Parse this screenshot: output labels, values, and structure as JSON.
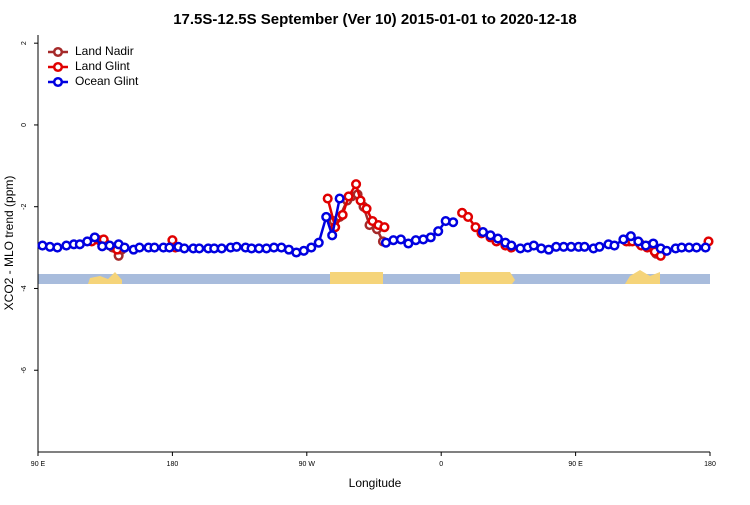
{
  "chart_data": {
    "type": "line",
    "title": "17.5S-12.5S September (Ver 10)   2015-01-01 to 2020-12-18",
    "x_label": "Longitude",
    "y_label": "XCO2 - MLO trend (ppm)",
    "xlim": [
      90,
      540
    ],
    "ylim": [
      -8,
      2.2
    ],
    "xticks": [
      {
        "value": 90,
        "label": "90 E"
      },
      180,
      {
        "value": 270,
        "label": "90 W"
      },
      {
        "value": 360,
        "label": "0"
      },
      {
        "value": 450,
        "label": "90 E"
      },
      {
        "value": 540,
        "label": "180"
      }
    ],
    "yticks": [
      -6,
      -4,
      -2,
      0,
      2
    ],
    "legend": "top-left",
    "series": [
      {
        "name": "Land Nadir",
        "color": "#a52a2a",
        "x": [
          135,
          140,
          144,
          146,
          230,
          288,
          292,
          297,
          300,
          304,
          308,
          312,
          317,
          321,
          400,
          486,
          493,
          500,
          504
        ],
        "values": [
          -2.9,
          -3.0,
          -3.2,
          -3.05,
          null,
          -2.35,
          -2.25,
          -1.85,
          -1.75,
          -1.7,
          -2.0,
          -2.45,
          -2.55,
          -2.85,
          null,
          -2.85,
          -2.9,
          -2.95,
          -3.15
        ]
      },
      {
        "name": "Land Glint",
        "color": "#e00000",
        "x": [
          126,
          131,
          134,
          143,
          160,
          180,
          182,
          230,
          284,
          289,
          294,
          298,
          303,
          306,
          310,
          314,
          318,
          322,
          345,
          374,
          378,
          383,
          387,
          393,
          397,
          403,
          407,
          445,
          484,
          488,
          494,
          498,
          503,
          507,
          525,
          539
        ],
        "values": [
          -2.85,
          -2.82,
          -2.8,
          -3.05,
          null,
          -2.82,
          -3.0,
          null,
          -1.8,
          -2.5,
          -2.2,
          -1.75,
          -1.45,
          -1.85,
          -2.05,
          -2.35,
          -2.45,
          -2.5,
          null,
          -2.15,
          -2.25,
          -2.5,
          -2.65,
          -2.75,
          -2.85,
          -2.95,
          -3.0,
          null,
          -2.85,
          -2.85,
          -2.95,
          -3.0,
          -3.1,
          -3.2,
          null,
          -2.85
        ]
      },
      {
        "name": "Ocean Glint",
        "color": "#0000e0",
        "x": [
          93,
          98,
          103,
          109,
          114,
          118,
          123,
          128,
          133,
          138,
          144,
          148,
          154,
          158,
          164,
          168,
          174,
          178,
          184,
          188,
          194,
          198,
          204,
          208,
          213,
          219,
          223,
          229,
          233,
          238,
          243,
          248,
          253,
          258,
          263,
          268,
          273,
          278,
          283,
          287,
          292,
          307,
          323,
          328,
          333,
          338,
          343,
          348,
          353,
          358,
          363,
          368,
          378,
          388,
          393,
          398,
          403,
          407,
          413,
          418,
          422,
          427,
          432,
          437,
          442,
          447,
          452,
          456,
          462,
          466,
          472,
          476,
          482,
          487,
          492,
          497,
          502,
          507,
          511,
          517,
          521,
          526,
          531,
          537
        ],
        "values": [
          -2.95,
          -2.98,
          -3.0,
          -2.95,
          -2.92,
          -2.92,
          -2.85,
          -2.75,
          -2.97,
          -2.95,
          -2.92,
          -3.0,
          -3.05,
          -3.0,
          -3.0,
          -3.0,
          -3.0,
          -3.0,
          -2.98,
          -3.02,
          -3.02,
          -3.02,
          -3.02,
          -3.02,
          -3.02,
          -3.0,
          -2.98,
          -3.0,
          -3.02,
          -3.02,
          -3.02,
          -3.0,
          -3.0,
          -3.05,
          -3.12,
          -3.08,
          -3.0,
          -2.88,
          -2.25,
          -2.7,
          -1.8,
          null,
          -2.88,
          -2.82,
          -2.8,
          -2.9,
          -2.82,
          -2.8,
          -2.75,
          -2.6,
          -2.35,
          -2.38,
          null,
          -2.62,
          -2.7,
          -2.78,
          -2.88,
          -2.95,
          -3.02,
          -3.0,
          -2.95,
          -3.02,
          -3.05,
          -2.98,
          -2.98,
          -2.98,
          -2.98,
          -2.98,
          -3.02,
          -2.98,
          -2.92,
          -2.95,
          -2.8,
          -2.72,
          -2.85,
          -2.95,
          -2.9,
          -3.02,
          -3.08,
          -3.02,
          -3.0,
          -3.0,
          -3.0,
          -3.0
        ]
      }
    ]
  }
}
